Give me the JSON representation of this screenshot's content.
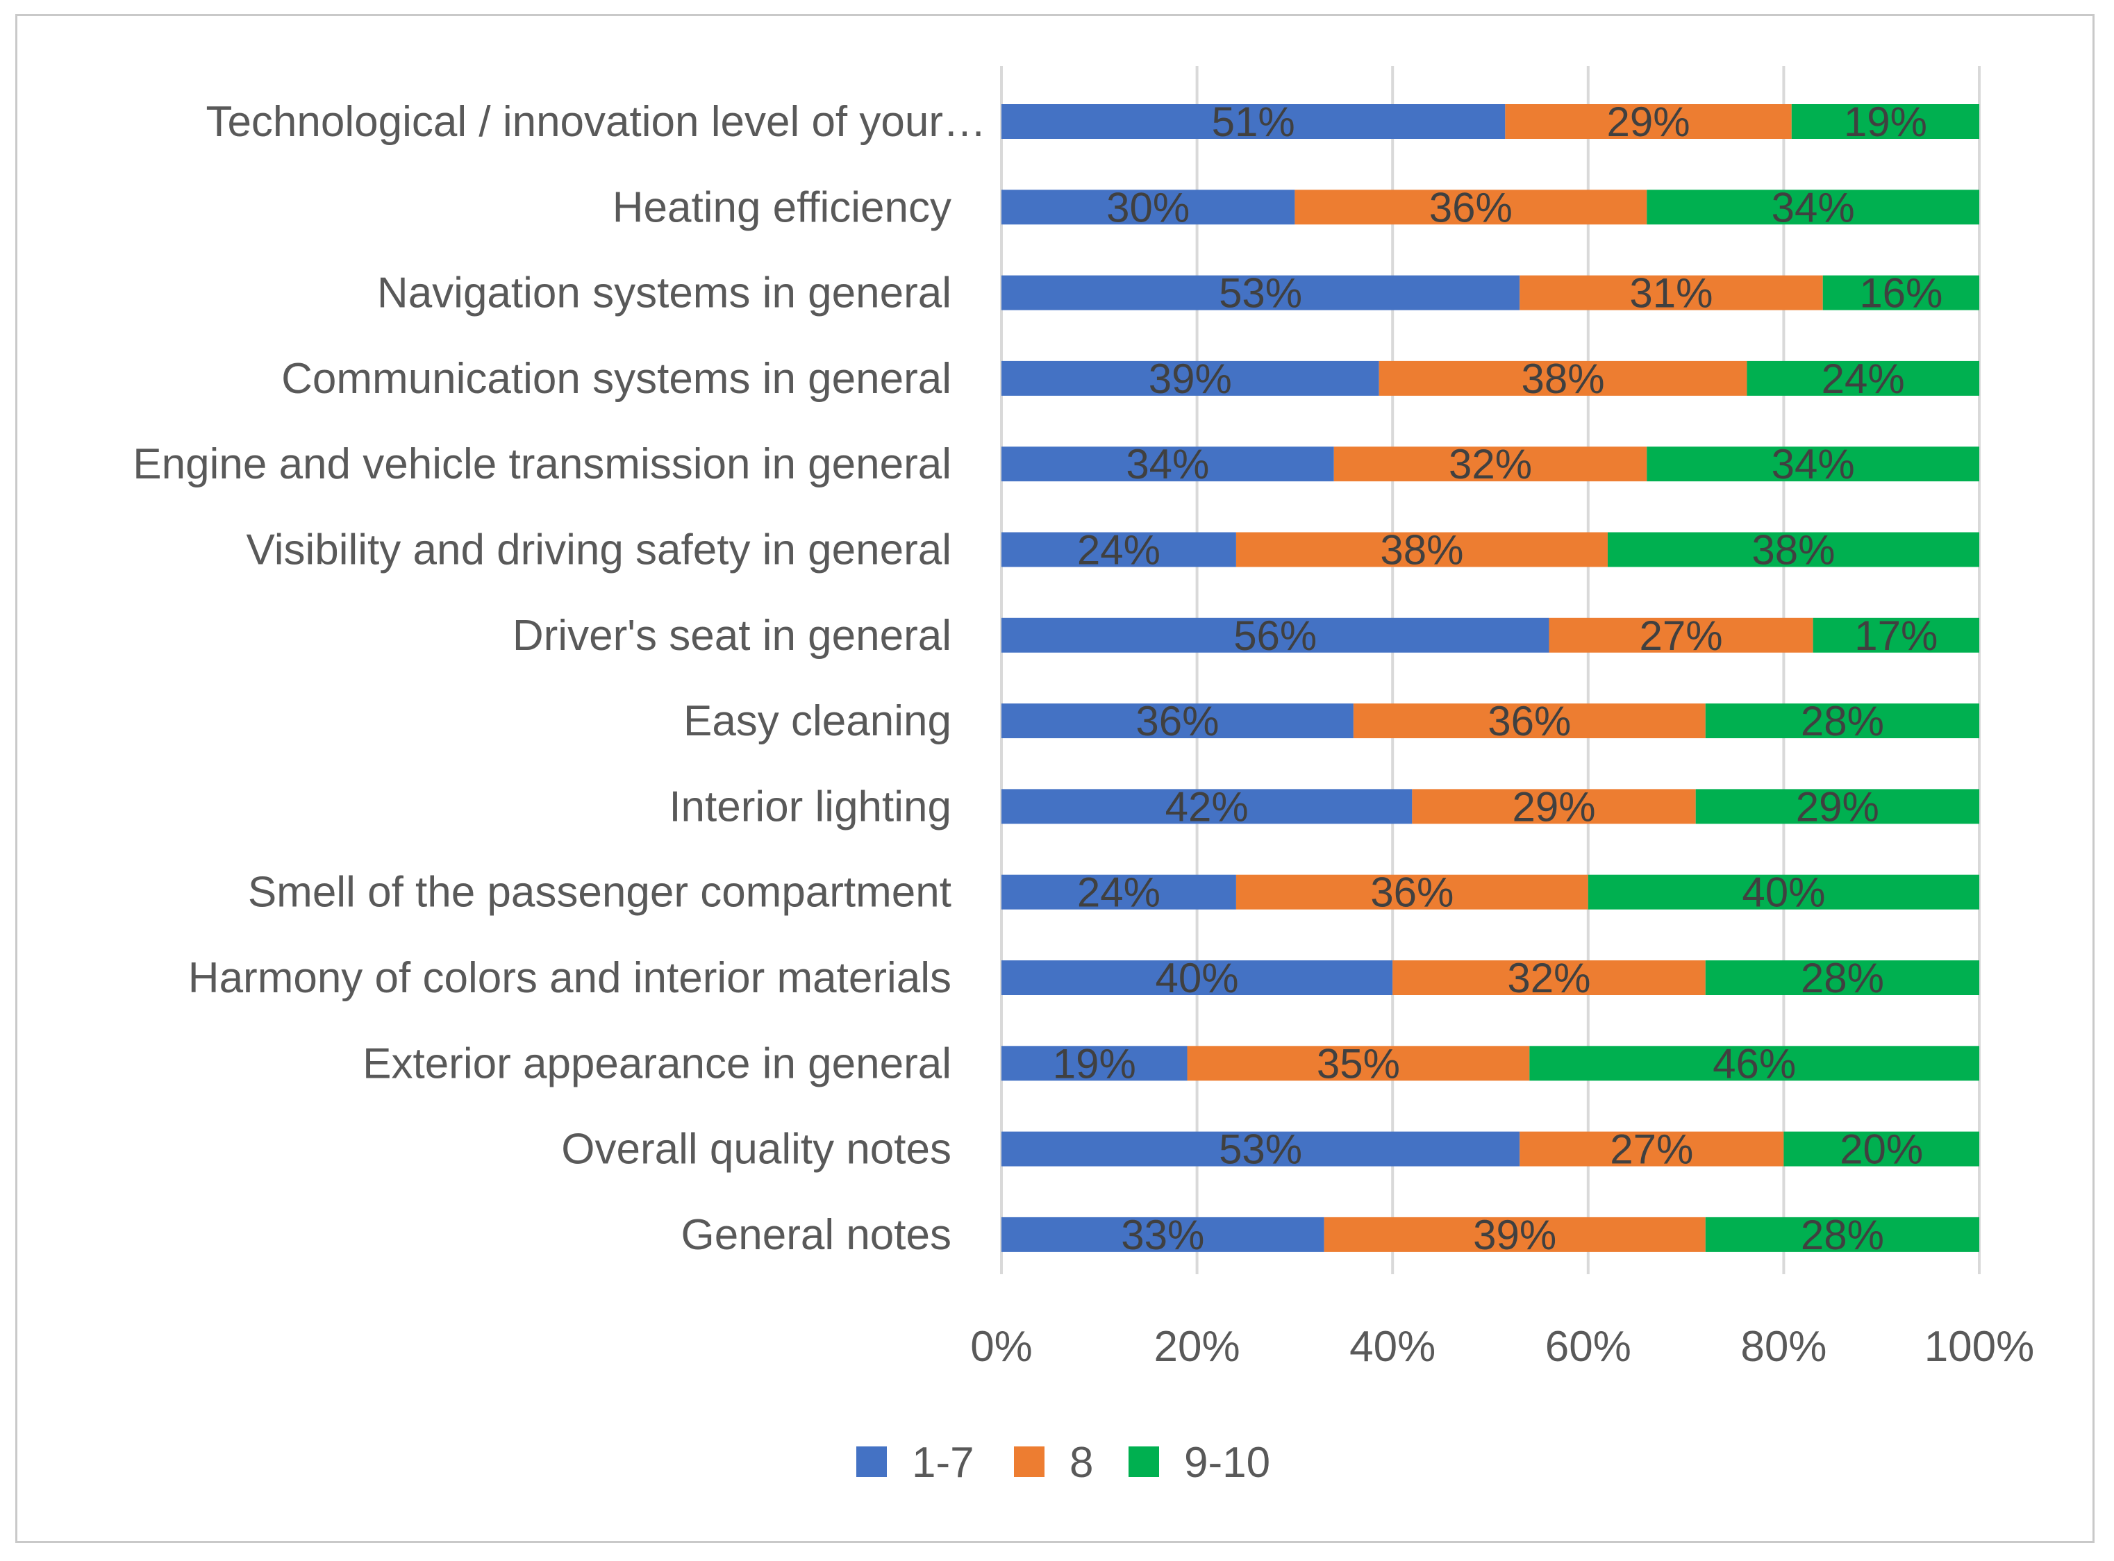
{
  "chart_data": {
    "type": "bar",
    "orientation": "horizontal",
    "stacked": "percent",
    "categories": [
      "Technological / innovation level of your…",
      "Heating efficiency",
      "Navigation systems in general",
      "Communication systems in general",
      "Engine and vehicle transmission in general",
      "Visibility and driving safety in general",
      "Driver's seat in general",
      "Easy cleaning",
      "Interior lighting",
      "Smell of the passenger compartment",
      "Harmony of colors and interior materials",
      "Exterior appearance in general",
      "Overall quality notes",
      "General notes"
    ],
    "series": [
      {
        "name": "1-7",
        "color": "#4472C4",
        "values": [
          51,
          30,
          53,
          39,
          34,
          24,
          56,
          36,
          42,
          24,
          40,
          19,
          53,
          33
        ],
        "labels": [
          "51%",
          "30%",
          "53%",
          "39%",
          "34%",
          "24%",
          "56%",
          "36%",
          "42%",
          "24%",
          "40%",
          "19%",
          "53%",
          "33%"
        ]
      },
      {
        "name": "8",
        "color": "#ED7D31",
        "values": [
          29,
          36,
          31,
          38,
          32,
          38,
          27,
          36,
          29,
          36,
          32,
          35,
          27,
          39
        ],
        "labels": [
          "29%",
          "36%",
          "31%",
          "38%",
          "32%",
          "38%",
          "27%",
          "36%",
          "29%",
          "36%",
          "32%",
          "35%",
          "27%",
          "39%"
        ]
      },
      {
        "name": "9-10",
        "color": "#00B050",
        "values": [
          19,
          34,
          16,
          24,
          34,
          38,
          17,
          28,
          29,
          40,
          28,
          46,
          20,
          28
        ],
        "labels": [
          "19%",
          "34%",
          "16%",
          "24%",
          "34%",
          "38%",
          "17%",
          "28%",
          "29%",
          "40%",
          "28%",
          "46%",
          "20%",
          "28%"
        ]
      }
    ],
    "xlim": [
      0,
      100
    ],
    "xticks": [
      "0%",
      "20%",
      "40%",
      "60%",
      "80%",
      "100%"
    ],
    "grid": true,
    "legend_position": "bottom",
    "title": "",
    "xlabel": "",
    "ylabel": ""
  }
}
